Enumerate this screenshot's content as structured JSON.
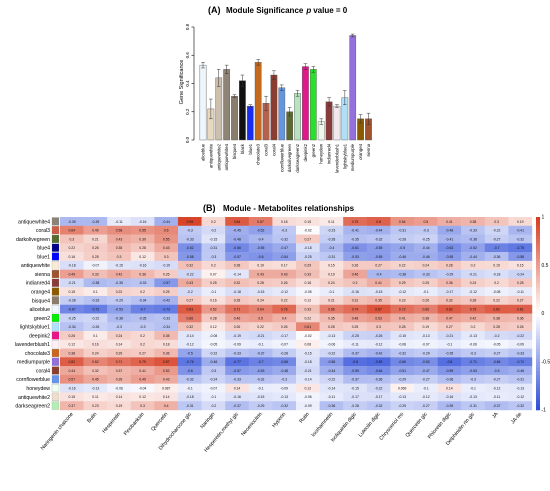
{
  "chart_data": [
    {
      "type": "bar",
      "panel_label": "(A)",
      "title": "Module Significance",
      "title_suffix": "p",
      "title_value": "value = 0",
      "ylabel": "Gene Significance",
      "ylim": [
        0,
        0.8
      ],
      "ytick_values": [
        0,
        0.2,
        0.4,
        0.6,
        0.8
      ],
      "yticks": [
        "0.0",
        "0.2",
        "0.4",
        "0.6",
        "0.8"
      ],
      "categories": [
        "aliceblue",
        "antiquewhite",
        "antiquewhite2",
        "antiquewhite4",
        "bisque4",
        "black",
        "blue1",
        "chocolate3",
        "coral3",
        "coral4",
        "cornflowerblue",
        "darkolivegreen",
        "darkseagreen2",
        "deepink2",
        "green2",
        "honeydew",
        "indianred4",
        "lavenderblush1",
        "lightskyblue1",
        "mediumpurple",
        "orange4",
        "sienna"
      ],
      "values": [
        0.53,
        0.22,
        0.44,
        0.5,
        0.31,
        0.42,
        0.24,
        0.55,
        0.26,
        0.46,
        0.37,
        0.2,
        0.33,
        0.52,
        0.5,
        0.13,
        0.27,
        0.24,
        0.3,
        0.74,
        0.15,
        0.15
      ],
      "errors": [
        0.02,
        0.07,
        0.06,
        0.03,
        0.01,
        0.04,
        0.01,
        0.02,
        0.05,
        0.03,
        0.02,
        0.03,
        0.02,
        0.02,
        0.02,
        0.02,
        0.03,
        0.01,
        0.05,
        0.01,
        0.03,
        0.04
      ],
      "colors": [
        "#eef5fb",
        "#e9d8c0",
        "#cdbfae",
        "#8e8577",
        "#8b7d6b",
        "#111111",
        "#1a2cf0",
        "#c6691d",
        "#b86050",
        "#8b3e2f",
        "#6496e0",
        "#5a6a30",
        "#b8e2c0",
        "#e0188a",
        "#2ae02a",
        "#eef8ea",
        "#8b3a3a",
        "#f3e8ee",
        "#b0e0f8",
        "#9370db",
        "#8b5a00",
        "#a0522d"
      ]
    },
    {
      "type": "heatmap",
      "panel_label": "(B)",
      "title": "Module - Metabolites relationships",
      "rows": [
        "antiquewhite4",
        "coral3",
        "darkolivegreen",
        "blue4",
        "blue1",
        "antiquewhite",
        "sienna",
        "indianred4",
        "orange4",
        "bisque4",
        "aliceblue",
        "green2",
        "lightskyblue1",
        "deepink2",
        "lavenderblush1",
        "chocolate3",
        "mediumpurple",
        "coral4",
        "cornflowerblue",
        "honeydew",
        "antiquewhite2",
        "darkseagreen2"
      ],
      "columns": [
        "Naringenin chalcone",
        "Butin",
        "Hesperetin",
        "Pinobanksin",
        "Quercetin",
        "Dihydrocharcone glc",
        "Naringin",
        "Hesperetin,methyl glc",
        "Neoeriocitrin",
        "Hyperin",
        "Rutin",
        "Isorhamnetin",
        "Isoliquiritin digic",
        "Luteolin digic",
        "Chrysoeriol ms",
        "Quercetin glc",
        "Phloretin digic",
        "Delphinidin rtn glc",
        "JA",
        "JA-Ile"
      ],
      "legend_ticks": [
        "1",
        "0.5",
        "0",
        "-0.5",
        "-1"
      ],
      "legend_tick_values": [
        1,
        0.5,
        0,
        -0.5,
        -1
      ],
      "color_scale": {
        "negative": "#2b4bd8",
        "zero": "#ffffff",
        "positive": "#d63a1e"
      },
      "values": [
        [
          -0.39,
          -0.39,
          -0.11,
          -0.16,
          -0.44,
          0.95,
          0.2,
          0.84,
          0.67,
          0.18,
          0.15,
          0.11,
          0.75,
          0.8,
          0.54,
          0.5,
          0.41,
          0.38,
          0.3,
          0.19
        ],
        [
          0.64,
          0.49,
          0.58,
          0.55,
          0.6,
          -0.3,
          -0.2,
          -0.45,
          -0.52,
          -0.3,
          -0.02,
          -0.23,
          -0.41,
          -0.44,
          -0.31,
          -0.3,
          -0.48,
          -0.33,
          -0.22,
          -0.41
        ],
        [
          0.3,
          0.21,
          0.43,
          0.39,
          0.55,
          -0.33,
          -0.15,
          -0.48,
          -0.4,
          -0.32,
          0.27,
          -0.28,
          -0.35,
          -0.32,
          -0.28,
          -0.25,
          -0.41,
          -0.38,
          -0.27,
          -0.32
        ],
        [
          0.22,
          0.26,
          0.35,
          0.28,
          0.43,
          -0.62,
          -0.31,
          -0.66,
          -0.55,
          -0.47,
          -0.18,
          -0.4,
          -0.61,
          -0.55,
          -0.5,
          -0.44,
          -0.63,
          -0.52,
          -0.7,
          -0.75
        ],
        [
          0.16,
          0.25,
          0.3,
          0.12,
          0.3,
          -0.58,
          -0.3,
          -0.57,
          -0.6,
          -0.54,
          -0.25,
          -0.31,
          -0.53,
          -0.55,
          -0.46,
          -0.46,
          -0.55,
          -0.44,
          -0.36,
          -0.58
        ],
        [
          -0.18,
          -0.07,
          -0.15,
          -0.16,
          -0.19,
          0.32,
          0.2,
          0.28,
          0.19,
          0.17,
          0.29,
          0.15,
          0.26,
          0.27,
          0.22,
          0.24,
          0.28,
          0.2,
          0.19,
          0.15
        ],
        [
          0.49,
          0.33,
          0.42,
          0.36,
          0.26,
          -0.22,
          0.07,
          -0.14,
          0.43,
          0.43,
          0.33,
          0.19,
          0.46,
          -0.4,
          -0.38,
          -0.33,
          -0.29,
          -0.21,
          -0.18,
          -0.24
        ],
        [
          -0.21,
          -0.38,
          -0.35,
          -0.33,
          -0.57,
          0.43,
          0.25,
          0.32,
          0.28,
          0.26,
          0.18,
          0.24,
          0.3,
          0.41,
          0.29,
          0.25,
          0.36,
          0.24,
          0.2,
          0.28
        ],
        [
          0.15,
          0.1,
          0.22,
          0.2,
          0.25,
          -0.2,
          -0.1,
          -0.18,
          -0.15,
          -0.12,
          -0.05,
          -0.1,
          -0.16,
          -0.15,
          -0.12,
          -0.1,
          -0.17,
          -0.12,
          -0.08,
          -0.11
        ],
        [
          -0.28,
          -0.33,
          -0.29,
          -0.34,
          -0.42,
          0.27,
          0.16,
          0.28,
          0.24,
          0.22,
          0.12,
          0.21,
          0.31,
          0.35,
          0.23,
          0.26,
          0.32,
          0.28,
          0.22,
          0.27
        ],
        [
          -0.67,
          -0.72,
          -0.53,
          -0.7,
          -0.73,
          0.83,
          0.52,
          0.71,
          0.64,
          0.76,
          0.33,
          0.66,
          0.74,
          0.87,
          0.72,
          0.66,
          0.82,
          0.75,
          0.82,
          0.81
        ],
        [
          -0.25,
          -0.22,
          -0.38,
          -0.35,
          -0.33,
          0.66,
          0.28,
          0.46,
          0.5,
          0.4,
          0.22,
          0.35,
          0.48,
          0.53,
          0.41,
          0.38,
          0.47,
          0.42,
          0.38,
          0.36
        ],
        [
          -0.34,
          -0.26,
          -0.3,
          -0.3,
          -0.34,
          0.32,
          0.12,
          0.26,
          0.22,
          0.26,
          0.61,
          0.28,
          0.25,
          0.3,
          0.28,
          0.19,
          0.27,
          0.2,
          0.28,
          0.26
        ],
        [
          0.26,
          0.1,
          0.24,
          0.2,
          0.35,
          -0.14,
          -0.08,
          -0.19,
          -0.21,
          -0.17,
          -0.02,
          -0.13,
          -0.25,
          -0.26,
          -0.15,
          -0.13,
          -0.21,
          -0.13,
          -0.2,
          -0.22
        ],
        [
          0.12,
          0.16,
          0.14,
          0.2,
          0.18,
          -0.12,
          -0.05,
          -0.09,
          -0.1,
          -0.07,
          0.08,
          -0.06,
          -0.11,
          -0.12,
          -0.08,
          -0.07,
          -0.1,
          -0.06,
          -0.05,
          -0.09
        ],
        [
          0.38,
          0.24,
          0.29,
          0.27,
          0.36,
          -0.5,
          -0.22,
          -0.33,
          -0.37,
          -0.28,
          -0.15,
          -0.22,
          -0.37,
          -0.42,
          -0.32,
          -0.29,
          -0.35,
          -0.3,
          -0.27,
          -0.33
        ],
        [
          0.82,
          0.62,
          0.71,
          0.79,
          0.87,
          -0.76,
          -0.46,
          -0.77,
          -0.7,
          -0.66,
          -0.18,
          -0.56,
          -0.8,
          -0.83,
          -0.66,
          -0.63,
          -0.8,
          -0.71,
          -0.66,
          -0.72
        ],
        [
          0.44,
          0.32,
          0.37,
          0.41,
          0.52,
          -0.6,
          -0.3,
          -0.57,
          -0.53,
          -0.48,
          -0.21,
          -0.44,
          -0.59,
          -0.64,
          -0.51,
          -0.47,
          -0.59,
          -0.53,
          -0.5,
          -0.46
        ],
        [
          0.57,
          0.45,
          0.39,
          0.49,
          0.43,
          -0.32,
          -0.24,
          -0.33,
          -0.32,
          -0.3,
          -0.14,
          -0.22,
          -0.37,
          -0.36,
          -0.29,
          -0.27,
          -0.36,
          -0.3,
          -0.27,
          -0.31
        ],
        [
          -0.16,
          -0.13,
          -0.06,
          -0.04,
          0.087,
          -0.1,
          -0.07,
          0.14,
          -0.1,
          -0.09,
          0.12,
          -0.14,
          -0.15,
          -0.22,
          0.069,
          -0.1,
          0.14,
          -0.1,
          -0.12,
          -0.13
        ],
        [
          0.15,
          0.11,
          0.14,
          0.12,
          0.14,
          -0.18,
          -0.1,
          -0.16,
          -0.15,
          -0.13,
          -0.06,
          -0.11,
          -0.17,
          -0.17,
          -0.13,
          -0.12,
          -0.16,
          -0.13,
          -0.11,
          -0.12
        ],
        [
          0.37,
          0.23,
          0.19,
          0.3,
          0.4,
          -0.31,
          -0.2,
          -0.37,
          -0.29,
          -0.32,
          -0.09,
          -0.36,
          -0.28,
          -0.32,
          -0.25,
          -0.27,
          -0.39,
          -0.31,
          -0.37,
          -0.32
        ]
      ]
    }
  ]
}
